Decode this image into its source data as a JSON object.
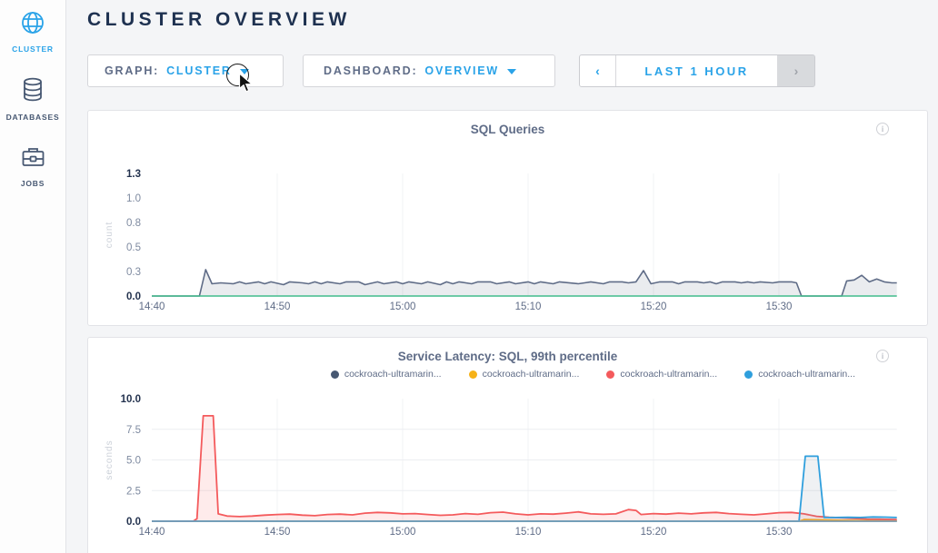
{
  "sidebar": {
    "items": [
      {
        "label": "CLUSTER",
        "icon": "globe-icon",
        "active": true
      },
      {
        "label": "DATABASES",
        "icon": "database-icon",
        "active": false
      },
      {
        "label": "JOBS",
        "icon": "briefcase-icon",
        "active": false
      }
    ]
  },
  "header": {
    "title": "CLUSTER OVERVIEW"
  },
  "controls": {
    "graph": {
      "label": "GRAPH:",
      "value": "CLUSTER"
    },
    "dashboard": {
      "label": "DASHBOARD:",
      "value": "OVERVIEW"
    },
    "timerange": {
      "prev": "‹",
      "label": "LAST 1 HOUR",
      "next": "›"
    }
  },
  "colors": {
    "accent": "#2aa3e8",
    "navy": "#1e3150",
    "muted": "#5f6c87",
    "tick_bold": "#24334f",
    "tick_normal": "#7e8aa0",
    "green_baseline": "#41bb8b",
    "chart2_baseline": "#7d9eb5",
    "series_gray": "#475872",
    "series_yellow": "#f6b218",
    "series_red": "#f45a5c",
    "series_blue": "#2f9fdd"
  },
  "chart_data": [
    {
      "type": "area",
      "title": "SQL Queries",
      "info_icon": "i",
      "ylabel": "count",
      "xlabel": "",
      "ylim": [
        0,
        1.3
      ],
      "yticks": [
        "0.0",
        "0.3",
        "0.5",
        "0.8",
        "1.0",
        "1.3"
      ],
      "xticks": [
        {
          "t": 0,
          "label": "14:40"
        },
        {
          "t": 10,
          "label": "14:50"
        },
        {
          "t": 20,
          "label": "15:00"
        },
        {
          "t": 30,
          "label": "15:10"
        },
        {
          "t": 40,
          "label": "15:20"
        },
        {
          "t": 50,
          "label": "15:30"
        }
      ],
      "x_range_minutes": [
        0,
        59.4
      ],
      "grid_y": [],
      "baseline_color": "#41bb8b",
      "legend": [],
      "series": [
        {
          "name": "sql-queries",
          "color": "#5f6c87",
          "fill": "rgba(95,108,133,0.13)",
          "width": 1.6,
          "points": [
            [
              0,
              0
            ],
            [
              3.8,
              0
            ],
            [
              4.3,
              0.28
            ],
            [
              4.8,
              0.13
            ],
            [
              5.5,
              0.14
            ],
            [
              6.5,
              0.13
            ],
            [
              7,
              0.15
            ],
            [
              7.5,
              0.13
            ],
            [
              8.5,
              0.15
            ],
            [
              9,
              0.13
            ],
            [
              9.5,
              0.15
            ],
            [
              10.5,
              0.12
            ],
            [
              11,
              0.15
            ],
            [
              12,
              0.14
            ],
            [
              12.5,
              0.13
            ],
            [
              13,
              0.15
            ],
            [
              13.5,
              0.13
            ],
            [
              14,
              0.15
            ],
            [
              15,
              0.13
            ],
            [
              15.5,
              0.15
            ],
            [
              16.5,
              0.15
            ],
            [
              17,
              0.12
            ],
            [
              18,
              0.15
            ],
            [
              18.5,
              0.13
            ],
            [
              19.5,
              0.15
            ],
            [
              20,
              0.13
            ],
            [
              20.5,
              0.15
            ],
            [
              21.5,
              0.13
            ],
            [
              22,
              0.15
            ],
            [
              23,
              0.12
            ],
            [
              23.5,
              0.15
            ],
            [
              24,
              0.13
            ],
            [
              24.5,
              0.15
            ],
            [
              25.5,
              0.13
            ],
            [
              26,
              0.15
            ],
            [
              27,
              0.15
            ],
            [
              27.5,
              0.13
            ],
            [
              28.5,
              0.15
            ],
            [
              29,
              0.13
            ],
            [
              30,
              0.15
            ],
            [
              30.5,
              0.13
            ],
            [
              31,
              0.15
            ],
            [
              32,
              0.13
            ],
            [
              32.5,
              0.15
            ],
            [
              34,
              0.13
            ],
            [
              34.5,
              0.14
            ],
            [
              35,
              0.15
            ],
            [
              36,
              0.13
            ],
            [
              36.5,
              0.15
            ],
            [
              37.5,
              0.15
            ],
            [
              38,
              0.14
            ],
            [
              38.6,
              0.15
            ],
            [
              39.2,
              0.27
            ],
            [
              39.8,
              0.13
            ],
            [
              40.5,
              0.15
            ],
            [
              41.5,
              0.15
            ],
            [
              42,
              0.13
            ],
            [
              42.5,
              0.15
            ],
            [
              43.5,
              0.15
            ],
            [
              44,
              0.14
            ],
            [
              44.5,
              0.15
            ],
            [
              45,
              0.13
            ],
            [
              45.5,
              0.15
            ],
            [
              46.5,
              0.15
            ],
            [
              47,
              0.14
            ],
            [
              47.5,
              0.15
            ],
            [
              48,
              0.14
            ],
            [
              48.5,
              0.15
            ],
            [
              49.5,
              0.14
            ],
            [
              50,
              0.15
            ],
            [
              51,
              0.15
            ],
            [
              51.4,
              0.14
            ],
            [
              51.8,
              0
            ],
            [
              55,
              0
            ],
            [
              55.4,
              0.16
            ],
            [
              56,
              0.17
            ],
            [
              56.6,
              0.22
            ],
            [
              57.2,
              0.15
            ],
            [
              57.8,
              0.18
            ],
            [
              58.4,
              0.15
            ],
            [
              59,
              0.14
            ],
            [
              59.4,
              0.14
            ]
          ]
        }
      ]
    },
    {
      "type": "area",
      "title": "Service Latency: SQL, 99th percentile",
      "info_icon": "i",
      "ylabel": "seconds",
      "xlabel": "",
      "ylim": [
        0,
        10
      ],
      "yticks": [
        "0.0",
        "2.5",
        "5.0",
        "7.5",
        "10.0"
      ],
      "xticks": [
        {
          "t": 0,
          "label": "14:40"
        },
        {
          "t": 10,
          "label": "14:50"
        },
        {
          "t": 20,
          "label": "15:00"
        },
        {
          "t": 30,
          "label": "15:10"
        },
        {
          "t": 40,
          "label": "15:20"
        },
        {
          "t": 50,
          "label": "15:30"
        }
      ],
      "x_range_minutes": [
        0,
        59.4
      ],
      "grid_y": [
        2.5,
        5,
        7.5
      ],
      "baseline_color": "#7d9eb5",
      "legend": [
        {
          "label": "cockroach-ultramarin...",
          "color": "#475872"
        },
        {
          "label": "cockroach-ultramarin...",
          "color": "#f6b218"
        },
        {
          "label": "cockroach-ultramarin...",
          "color": "#f45a5c"
        },
        {
          "label": "cockroach-ultramarin...",
          "color": "#2f9fdd"
        }
      ],
      "series": [
        {
          "name": "latency-node-gray",
          "color": "#475872",
          "fill": "none",
          "width": 1.4,
          "points": [
            [
              0,
              0
            ],
            [
              59.4,
              0
            ]
          ]
        },
        {
          "name": "latency-node-yellow",
          "color": "#f6b218",
          "fill": "rgba(246,178,24,0.15)",
          "width": 1.6,
          "points": [
            [
              0,
              0
            ],
            [
              51.6,
              0
            ],
            [
              52,
              0.14
            ],
            [
              53.5,
              0.12
            ],
            [
              55,
              0.08
            ],
            [
              57,
              0.05
            ],
            [
              59.4,
              0.03
            ]
          ]
        },
        {
          "name": "latency-node-red",
          "color": "#f45a5c",
          "fill": "rgba(244,90,92,0.12)",
          "width": 1.8,
          "points": [
            [
              0,
              0
            ],
            [
              3.3,
              0
            ],
            [
              3.6,
              0.2
            ],
            [
              4.1,
              8.6
            ],
            [
              4.9,
              8.6
            ],
            [
              5.3,
              0.6
            ],
            [
              6,
              0.42
            ],
            [
              7,
              0.38
            ],
            [
              8,
              0.42
            ],
            [
              9,
              0.5
            ],
            [
              10,
              0.55
            ],
            [
              11,
              0.58
            ],
            [
              12,
              0.5
            ],
            [
              13,
              0.45
            ],
            [
              14,
              0.55
            ],
            [
              15,
              0.58
            ],
            [
              16,
              0.52
            ],
            [
              17,
              0.66
            ],
            [
              18,
              0.72
            ],
            [
              19,
              0.68
            ],
            [
              20,
              0.6
            ],
            [
              21,
              0.62
            ],
            [
              22,
              0.55
            ],
            [
              23,
              0.48
            ],
            [
              24,
              0.52
            ],
            [
              25,
              0.62
            ],
            [
              26,
              0.56
            ],
            [
              27,
              0.7
            ],
            [
              28,
              0.74
            ],
            [
              29,
              0.6
            ],
            [
              30,
              0.52
            ],
            [
              31,
              0.6
            ],
            [
              32,
              0.58
            ],
            [
              33,
              0.66
            ],
            [
              34,
              0.76
            ],
            [
              35,
              0.6
            ],
            [
              36,
              0.56
            ],
            [
              37,
              0.6
            ],
            [
              38,
              0.95
            ],
            [
              38.6,
              0.88
            ],
            [
              39,
              0.55
            ],
            [
              40,
              0.62
            ],
            [
              41,
              0.58
            ],
            [
              42,
              0.66
            ],
            [
              43,
              0.6
            ],
            [
              44,
              0.68
            ],
            [
              45,
              0.72
            ],
            [
              46,
              0.62
            ],
            [
              47,
              0.56
            ],
            [
              48,
              0.52
            ],
            [
              49,
              0.6
            ],
            [
              50,
              0.7
            ],
            [
              51,
              0.72
            ],
            [
              52,
              0.6
            ],
            [
              53,
              0.4
            ],
            [
              54,
              0.32
            ],
            [
              55,
              0.28
            ],
            [
              56,
              0.22
            ],
            [
              57,
              0.18
            ],
            [
              58,
              0.16
            ],
            [
              59.4,
              0.14
            ]
          ]
        },
        {
          "name": "latency-node-blue",
          "color": "#2f9fdd",
          "fill": "rgba(120,140,160,0.12)",
          "width": 1.8,
          "points": [
            [
              0,
              0
            ],
            [
              51.6,
              0
            ],
            [
              52.1,
              5.3
            ],
            [
              53.1,
              5.3
            ],
            [
              53.6,
              0.3
            ],
            [
              54.5,
              0.3
            ],
            [
              55.5,
              0.32
            ],
            [
              56.5,
              0.3
            ],
            [
              57.5,
              0.35
            ],
            [
              58.5,
              0.33
            ],
            [
              59.4,
              0.3
            ]
          ]
        }
      ]
    }
  ]
}
